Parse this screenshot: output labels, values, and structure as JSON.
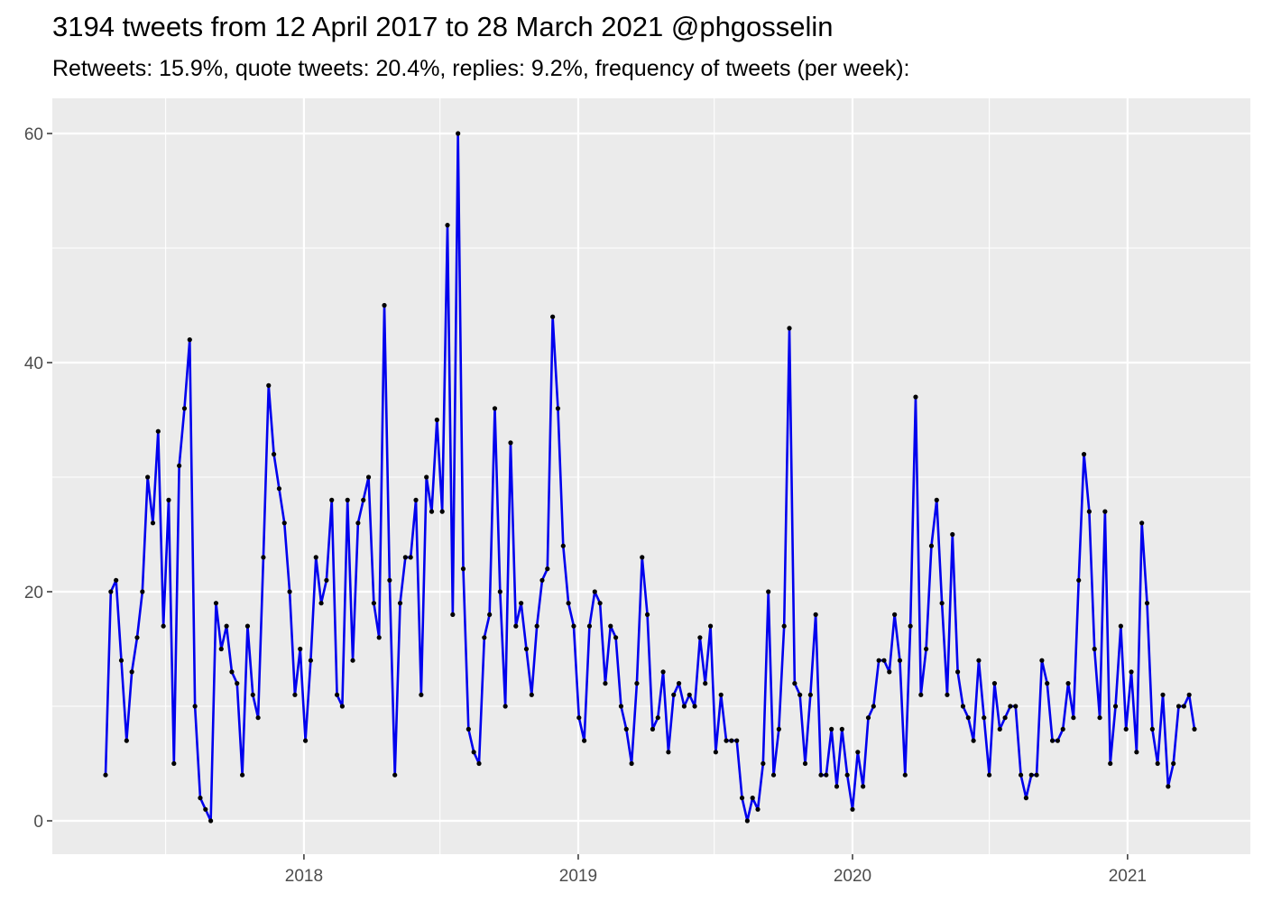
{
  "chart_data": {
    "type": "line",
    "title": "3194 tweets from 12 April 2017 to 28 March 2021 @phgosselin",
    "subtitle": "Retweets: 15.9%, quote tweets: 20.4%, replies: 9.2%, frequency of tweets (per week):",
    "xlabel": "",
    "ylabel": "",
    "x_ticks": [
      "2018",
      "2019",
      "2020",
      "2021"
    ],
    "y_ticks": [
      0,
      20,
      40,
      60
    ],
    "ylim": [
      0,
      60
    ],
    "grid": true,
    "line_color": "#0000ee",
    "point_color": "#000000",
    "panel_background": "#ebebeb",
    "series": [
      {
        "x_start": "2017-04-12",
        "x_step_days": 7,
        "values": [
          4,
          20,
          21,
          14,
          7,
          13,
          16,
          20,
          30,
          26,
          34,
          17,
          28,
          5,
          31,
          36,
          42,
          10,
          2,
          1,
          0,
          19,
          15,
          17,
          13,
          12,
          4,
          17,
          11,
          9,
          23,
          38,
          32,
          29,
          26,
          20,
          11,
          15,
          7,
          14,
          23,
          19,
          21,
          28,
          11,
          10,
          28,
          14,
          26,
          28,
          30,
          19,
          16,
          45,
          21,
          4,
          19,
          23,
          23,
          28,
          11,
          30,
          27,
          35,
          27,
          52,
          18,
          60,
          22,
          8,
          6,
          5,
          16,
          18,
          36,
          20,
          10,
          33,
          17,
          19,
          15,
          11,
          17,
          21,
          22,
          44,
          36,
          24,
          19,
          17,
          9,
          7,
          17,
          20,
          19,
          12,
          17,
          16,
          10,
          8,
          5,
          12,
          23,
          18,
          8,
          9,
          13,
          6,
          11,
          12,
          10,
          11,
          10,
          16,
          12,
          17,
          6,
          11,
          7,
          7,
          7,
          2,
          0,
          2,
          1,
          5,
          20,
          4,
          8,
          17,
          43,
          12,
          11,
          5,
          11,
          18,
          4,
          4,
          8,
          3,
          8,
          4,
          1,
          6,
          3,
          9,
          10,
          14,
          14,
          13,
          18,
          14,
          4,
          17,
          37,
          11,
          15,
          24,
          28,
          19,
          11,
          25,
          13,
          10,
          9,
          7,
          14,
          9,
          4,
          12,
          8,
          9,
          10,
          10,
          4,
          2,
          4,
          4,
          14,
          12,
          7,
          7,
          8,
          12,
          9,
          21,
          32,
          27,
          15,
          9,
          27,
          5,
          10,
          17,
          8,
          13,
          6,
          26,
          19,
          8,
          5,
          11,
          3,
          5,
          10,
          10,
          11,
          8
        ]
      }
    ]
  }
}
